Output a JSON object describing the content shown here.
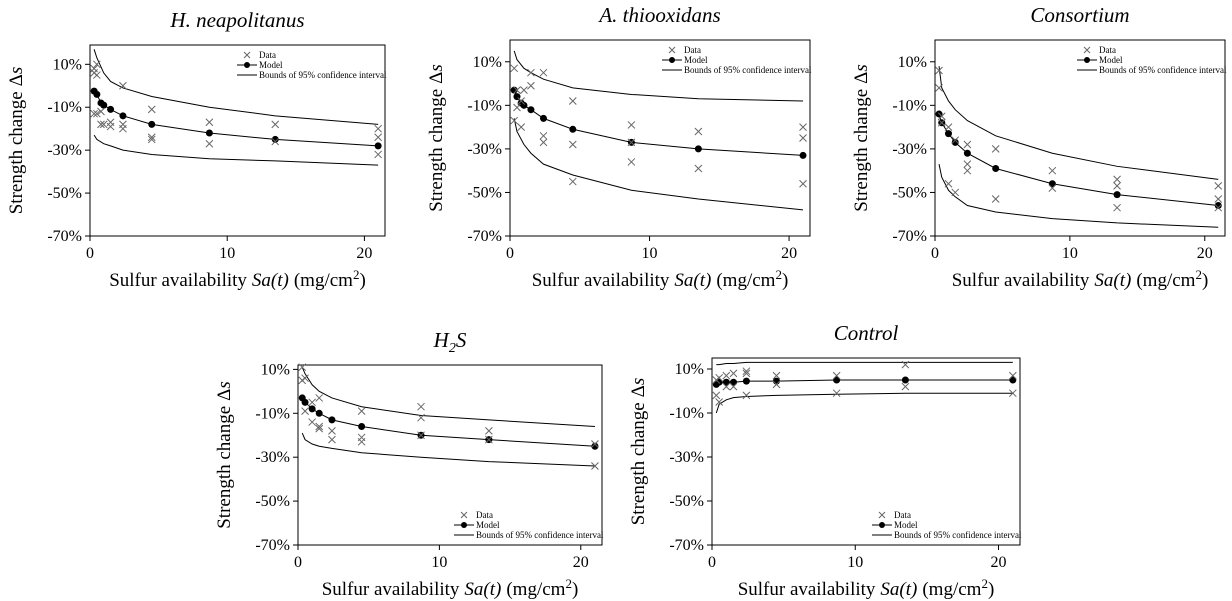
{
  "chart_data": [
    {
      "type": "scatter",
      "title": "H. neapolitanus",
      "xlabel": [
        "Sulfur availability",
        "Sa(t)",
        "(mg/cm",
        "2",
        ")"
      ],
      "ylabel": [
        "Strength change",
        "Δ",
        "s"
      ],
      "xlim": [
        0,
        21.5
      ],
      "ylim": [
        -70,
        19
      ],
      "xticks": [
        0,
        10,
        20
      ],
      "yticks": [
        {
          "value": -70,
          "label": "-70%"
        },
        {
          "value": -50,
          "label": "-50%"
        },
        {
          "value": -30,
          "label": "-30%"
        },
        {
          "value": -10,
          "label": "-10%"
        },
        {
          "value": 10,
          "label": "10%"
        }
      ],
      "legend": "upper right",
      "series": [
        {
          "name": "Data",
          "color": "#666666",
          "x": [
            0.3,
            0.3,
            0.3,
            0.5,
            0.5,
            0.5,
            0.8,
            0.8,
            1,
            1.5,
            1.5,
            2.4,
            2.4,
            2.4,
            4.5,
            4.5,
            4.5,
            8.7,
            8.7,
            13.5,
            13.5,
            21,
            21,
            21
          ],
          "values": [
            8,
            6,
            -13,
            10,
            5,
            -13,
            -12,
            -18,
            -18,
            -19,
            -17,
            0,
            -18,
            -20,
            -11,
            -24,
            -25,
            -17,
            -27,
            -18,
            -26,
            -20,
            -24,
            -32
          ]
        },
        {
          "name": "Model",
          "color": "#000000",
          "x": [
            0.3,
            0.5,
            0.8,
            1,
            1.5,
            2.4,
            4.5,
            8.7,
            13.5,
            21
          ],
          "values": [
            -2.5,
            -4,
            -8,
            -9,
            -11,
            -14,
            -18,
            -22,
            -25,
            -28
          ]
        },
        {
          "name": "Bounds of 95% confidence interval",
          "color": "#000000",
          "x": [
            0.3,
            0.5,
            1,
            1.5,
            2.4,
            4.5,
            8.7,
            13.5,
            21
          ],
          "values": [
            17,
            13,
            6,
            2,
            -1,
            -5,
            -10,
            -14,
            -18
          ],
          "lower": [
            -23,
            -25,
            -27,
            -28,
            -30,
            -32,
            -34,
            -35,
            -37
          ]
        }
      ]
    },
    {
      "type": "scatter",
      "title": "A. thiooxidans",
      "xlabel": [
        "Sulfur availability",
        "Sa(t)",
        "(mg/cm",
        "2",
        ")"
      ],
      "ylabel": [
        "Strength change",
        "Δ",
        "s"
      ],
      "xlim": [
        0,
        21.5
      ],
      "ylim": [
        -70,
        20
      ],
      "xticks": [
        0,
        10,
        20
      ],
      "yticks": [
        {
          "value": -70,
          "label": "-70%"
        },
        {
          "value": -50,
          "label": "-50%"
        },
        {
          "value": -30,
          "label": "-30%"
        },
        {
          "value": -10,
          "label": "-10%"
        },
        {
          "value": 10,
          "label": "10%"
        }
      ],
      "legend": "upper right",
      "series": [
        {
          "name": "Data",
          "color": "#666666",
          "x": [
            0.3,
            0.3,
            0.5,
            0.5,
            0.8,
            0.8,
            1,
            1.5,
            1.5,
            2.4,
            2.4,
            2.4,
            4.5,
            4.5,
            4.5,
            8.7,
            8.7,
            8.7,
            13.5,
            13.5,
            21,
            21,
            21
          ],
          "values": [
            7,
            -17,
            -3,
            -11,
            -8,
            -20,
            -3,
            5,
            -1,
            5,
            -24,
            -27,
            -8,
            -28,
            -45,
            -19,
            -27,
            -36,
            -22,
            -39,
            -20,
            -25,
            -46
          ]
        },
        {
          "name": "Model",
          "color": "#000000",
          "x": [
            0.3,
            0.5,
            0.8,
            1,
            1.5,
            2.4,
            4.5,
            8.7,
            13.5,
            21
          ],
          "values": [
            -3,
            -6,
            -9,
            -10,
            -12,
            -16,
            -21,
            -27,
            -30,
            -33
          ]
        },
        {
          "name": "Bounds of 95% confidence interval",
          "color": "#000000",
          "x": [
            0.3,
            0.5,
            1,
            1.5,
            2.4,
            4.5,
            8.7,
            13.5,
            21
          ],
          "values": [
            15,
            11,
            7,
            5,
            2,
            -2,
            -5,
            -7,
            -8
          ],
          "lower": [
            -16,
            -22,
            -28,
            -32,
            -37,
            -42,
            -49,
            -53,
            -58
          ]
        }
      ]
    },
    {
      "type": "scatter",
      "title": "Consortium",
      "xlabel": [
        "Sulfur availability",
        "Sa(t)",
        "(mg/cm",
        "2",
        ")"
      ],
      "ylabel": [
        "Strength change",
        "Δ",
        "s"
      ],
      "xlim": [
        0,
        21.5
      ],
      "ylim": [
        -70,
        20
      ],
      "xticks": [
        0,
        10,
        20
      ],
      "yticks": [
        {
          "value": -70,
          "label": "-70%"
        },
        {
          "value": -50,
          "label": "-50%"
        },
        {
          "value": -30,
          "label": "-30%"
        },
        {
          "value": -10,
          "label": "-10%"
        },
        {
          "value": 10,
          "label": "10%"
        }
      ],
      "legend": "upper right",
      "series": [
        {
          "name": "Data",
          "color": "#666666",
          "x": [
            0.3,
            0.3,
            0.5,
            0.5,
            1,
            1,
            1.5,
            1.5,
            2.4,
            2.4,
            2.4,
            4.5,
            4.5,
            8.7,
            8.7,
            13.5,
            13.5,
            13.5,
            21,
            21,
            21
          ],
          "values": [
            6,
            -2,
            -15,
            -18,
            -20,
            -46,
            -50,
            -26,
            -28,
            -37,
            -40,
            -30,
            -53,
            -40,
            -48,
            -44,
            -47,
            -57,
            -47,
            -53,
            -57
          ]
        },
        {
          "name": "Model",
          "color": "#000000",
          "x": [
            0.3,
            0.5,
            1,
            1.5,
            2.4,
            4.5,
            8.7,
            13.5,
            21
          ],
          "values": [
            -14,
            -18,
            -23,
            -27,
            -32,
            -39,
            -46,
            -51,
            -56
          ]
        },
        {
          "name": "Bounds of 95% confidence interval",
          "color": "#000000",
          "x": [
            0.3,
            0.5,
            1,
            1.5,
            2.4,
            4.5,
            8.7,
            13.5,
            21
          ],
          "values": [
            8,
            -2,
            -8,
            -12,
            -17,
            -24,
            -32,
            -38,
            -44
          ],
          "lower": [
            -37,
            -43,
            -49,
            -52,
            -56,
            -59,
            -62,
            -64,
            -66
          ]
        }
      ]
    },
    {
      "type": "scatter",
      "title": [
        "H",
        "2",
        "S"
      ],
      "xlabel": [
        "Sulfur availability",
        "Sa(t)",
        "(mg/cm",
        "2",
        ")"
      ],
      "ylabel": [
        "Strength change",
        "Δ",
        "s"
      ],
      "xlim": [
        0,
        21.5
      ],
      "ylim": [
        -70,
        12
      ],
      "xticks": [
        0,
        10,
        20
      ],
      "yticks": [
        {
          "value": -70,
          "label": "-70%"
        },
        {
          "value": -50,
          "label": "-50%"
        },
        {
          "value": -30,
          "label": "-30%"
        },
        {
          "value": -10,
          "label": "-10%"
        },
        {
          "value": 10,
          "label": "10%"
        }
      ],
      "legend": "lower right",
      "series": [
        {
          "name": "Data",
          "color": "#666666",
          "x": [
            0.3,
            0.3,
            0.5,
            0.5,
            1,
            1,
            1.5,
            1.5,
            1.5,
            2.4,
            2.4,
            4.5,
            4.5,
            4.5,
            8.7,
            8.7,
            8.7,
            13.5,
            13.5,
            21,
            21
          ],
          "values": [
            11,
            5,
            6,
            -9,
            -14,
            -5,
            -3,
            -16,
            -17,
            -18,
            -22,
            -9,
            -21,
            -23,
            -7,
            -12,
            -20,
            -18,
            -22,
            -24,
            -34
          ]
        },
        {
          "name": "Model",
          "color": "#000000",
          "x": [
            0.3,
            0.5,
            1,
            1.5,
            2.4,
            4.5,
            8.7,
            13.5,
            21
          ],
          "values": [
            -3,
            -5,
            -8,
            -10,
            -13,
            -16,
            -20,
            -22,
            -25
          ]
        },
        {
          "name": "Bounds of 95% confidence interval",
          "color": "#000000",
          "x": [
            0.3,
            0.5,
            1,
            1.5,
            2.4,
            4.5,
            8.7,
            13.5,
            21
          ],
          "values": [
            11,
            8,
            3,
            0,
            -3,
            -7,
            -11,
            -13,
            -16
          ],
          "lower": [
            -19,
            -22,
            -24,
            -25,
            -26,
            -28,
            -30,
            -32,
            -34
          ]
        }
      ]
    },
    {
      "type": "scatter",
      "title": "Control",
      "xlabel": [
        "Sulfur availability",
        "Sa(t)",
        "(mg/cm",
        "2",
        ")"
      ],
      "ylabel": [
        "Strength change",
        "Δ",
        "s"
      ],
      "xlim": [
        0,
        21.5
      ],
      "ylim": [
        -70,
        15
      ],
      "xticks": [
        0,
        10,
        20
      ],
      "yticks": [
        {
          "value": -70,
          "label": "-70%"
        },
        {
          "value": -50,
          "label": "-50%"
        },
        {
          "value": -30,
          "label": "-30%"
        },
        {
          "value": -10,
          "label": "-10%"
        },
        {
          "value": 10,
          "label": "10%"
        }
      ],
      "legend": "lower right",
      "series": [
        {
          "name": "Data",
          "color": "#666666",
          "x": [
            0.3,
            0.3,
            0.5,
            0.5,
            1,
            1,
            1.5,
            1.5,
            2.4,
            2.4,
            2.4,
            4.5,
            4.5,
            8.7,
            8.7,
            13.5,
            13.5,
            21,
            21
          ],
          "values": [
            -2,
            5,
            -5,
            6,
            7,
            2,
            8,
            2,
            -2,
            8,
            9,
            3,
            7,
            -1,
            7,
            2,
            12,
            -1,
            7
          ]
        },
        {
          "name": "Model",
          "color": "#000000",
          "x": [
            0.3,
            0.5,
            1,
            1.5,
            2.4,
            4.5,
            8.7,
            13.5,
            21
          ],
          "values": [
            3,
            4,
            4,
            4,
            4.5,
            4.5,
            5,
            5,
            5
          ]
        },
        {
          "name": "Bounds of 95% confidence interval",
          "color": "#000000",
          "x": [
            0.3,
            0.5,
            1,
            1.5,
            2.4,
            4.5,
            8.7,
            13.5,
            21
          ],
          "values": [
            12,
            12,
            12.5,
            12.5,
            13,
            13,
            13,
            13,
            13
          ],
          "lower": [
            -10,
            -6,
            -4,
            -3,
            -2.5,
            -2,
            -1.5,
            -1,
            -1
          ]
        }
      ]
    }
  ]
}
